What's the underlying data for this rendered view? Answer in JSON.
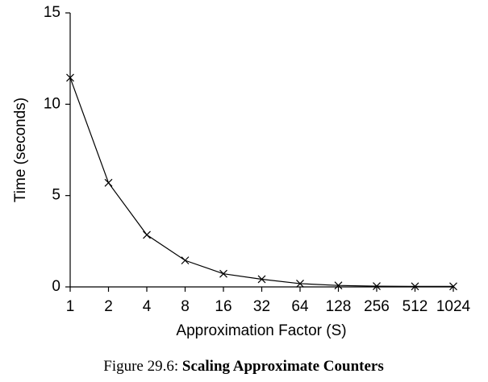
{
  "chart_data": {
    "type": "line",
    "x_label": "Approximation Factor (S)",
    "y_label": "Time (seconds)",
    "categories": [
      "1",
      "2",
      "4",
      "8",
      "16",
      "32",
      "64",
      "128",
      "256",
      "512",
      "1024"
    ],
    "values": [
      11.45,
      5.7,
      2.85,
      1.45,
      0.72,
      0.42,
      0.18,
      0.08,
      0.04,
      0.03,
      0.03
    ],
    "color": "#000000",
    "marker": "x",
    "ylim": [
      0,
      15
    ],
    "yticks": [
      0,
      5,
      10,
      15
    ]
  },
  "caption": {
    "label": "Figure 29.6:",
    "title": "Scaling Approximate Counters"
  }
}
